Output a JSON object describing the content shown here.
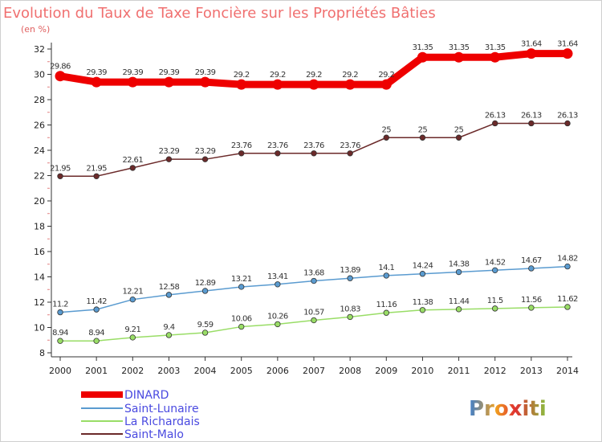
{
  "title": "Evolution du Taux de Taxe Foncière sur les Propriétés Bâties",
  "unit_label": "(en %)",
  "logo": "Proxiti",
  "chart_data": {
    "type": "line",
    "x": [
      "2000",
      "2001",
      "2002",
      "2003",
      "2004",
      "2005",
      "2006",
      "2007",
      "2008",
      "2009",
      "2010",
      "2011",
      "2012",
      "2013",
      "2014"
    ],
    "ylim": [
      8,
      32
    ],
    "yticks": [
      8,
      10,
      12,
      14,
      16,
      18,
      20,
      22,
      24,
      26,
      28,
      30,
      32
    ],
    "grid": false,
    "legend": "bottom-left",
    "series": [
      {
        "name": "DINARD",
        "color": "#ee0000",
        "width": 9,
        "values": [
          29.86,
          29.39,
          29.39,
          29.39,
          29.39,
          29.2,
          29.2,
          29.2,
          29.2,
          29.2,
          31.35,
          31.35,
          31.35,
          31.64,
          31.64
        ],
        "labels": [
          "29.86",
          "29.39",
          "29.39",
          "29.39",
          "29.39",
          "29.2",
          "29.2",
          "29.2",
          "29.2",
          "29.2",
          "31.35",
          "31.35",
          "31.35",
          "31.64",
          "31.64"
        ]
      },
      {
        "name": "Saint-Lunaire",
        "color": "#5a9bd0",
        "width": 1.5,
        "values": [
          11.2,
          11.42,
          12.21,
          12.58,
          12.89,
          13.21,
          13.41,
          13.68,
          13.89,
          14.1,
          14.24,
          14.38,
          14.52,
          14.67,
          14.82
        ],
        "labels": [
          "11.2",
          "11.42",
          "12.21",
          "12.58",
          "12.89",
          "13.21",
          "13.41",
          "13.68",
          "13.89",
          "14.1",
          "14.24",
          "14.38",
          "14.52",
          "14.67",
          "14.82"
        ]
      },
      {
        "name": "La Richardais",
        "color": "#99dd66",
        "width": 1.5,
        "values": [
          8.94,
          8.94,
          9.21,
          9.4,
          9.59,
          10.06,
          10.26,
          10.57,
          10.83,
          11.16,
          11.38,
          11.44,
          11.5,
          11.56,
          11.62
        ],
        "labels": [
          "8.94",
          "8.94",
          "9.21",
          "9.4",
          "9.59",
          "10.06",
          "10.26",
          "10.57",
          "10.83",
          "11.16",
          "11.38",
          "11.44",
          "11.5",
          "11.56",
          "11.62"
        ]
      },
      {
        "name": "Saint-Malo",
        "color": "#6b2a2a",
        "width": 1.5,
        "values": [
          21.95,
          21.95,
          22.61,
          23.29,
          23.29,
          23.76,
          23.76,
          23.76,
          23.76,
          25,
          25,
          25,
          26.13,
          26.13,
          26.13
        ],
        "labels": [
          "21.95",
          "21.95",
          "22.61",
          "23.29",
          "23.29",
          "23.76",
          "23.76",
          "23.76",
          "23.76",
          "25",
          "25",
          "25",
          "26.13",
          "26.13",
          "26.13"
        ]
      }
    ]
  }
}
